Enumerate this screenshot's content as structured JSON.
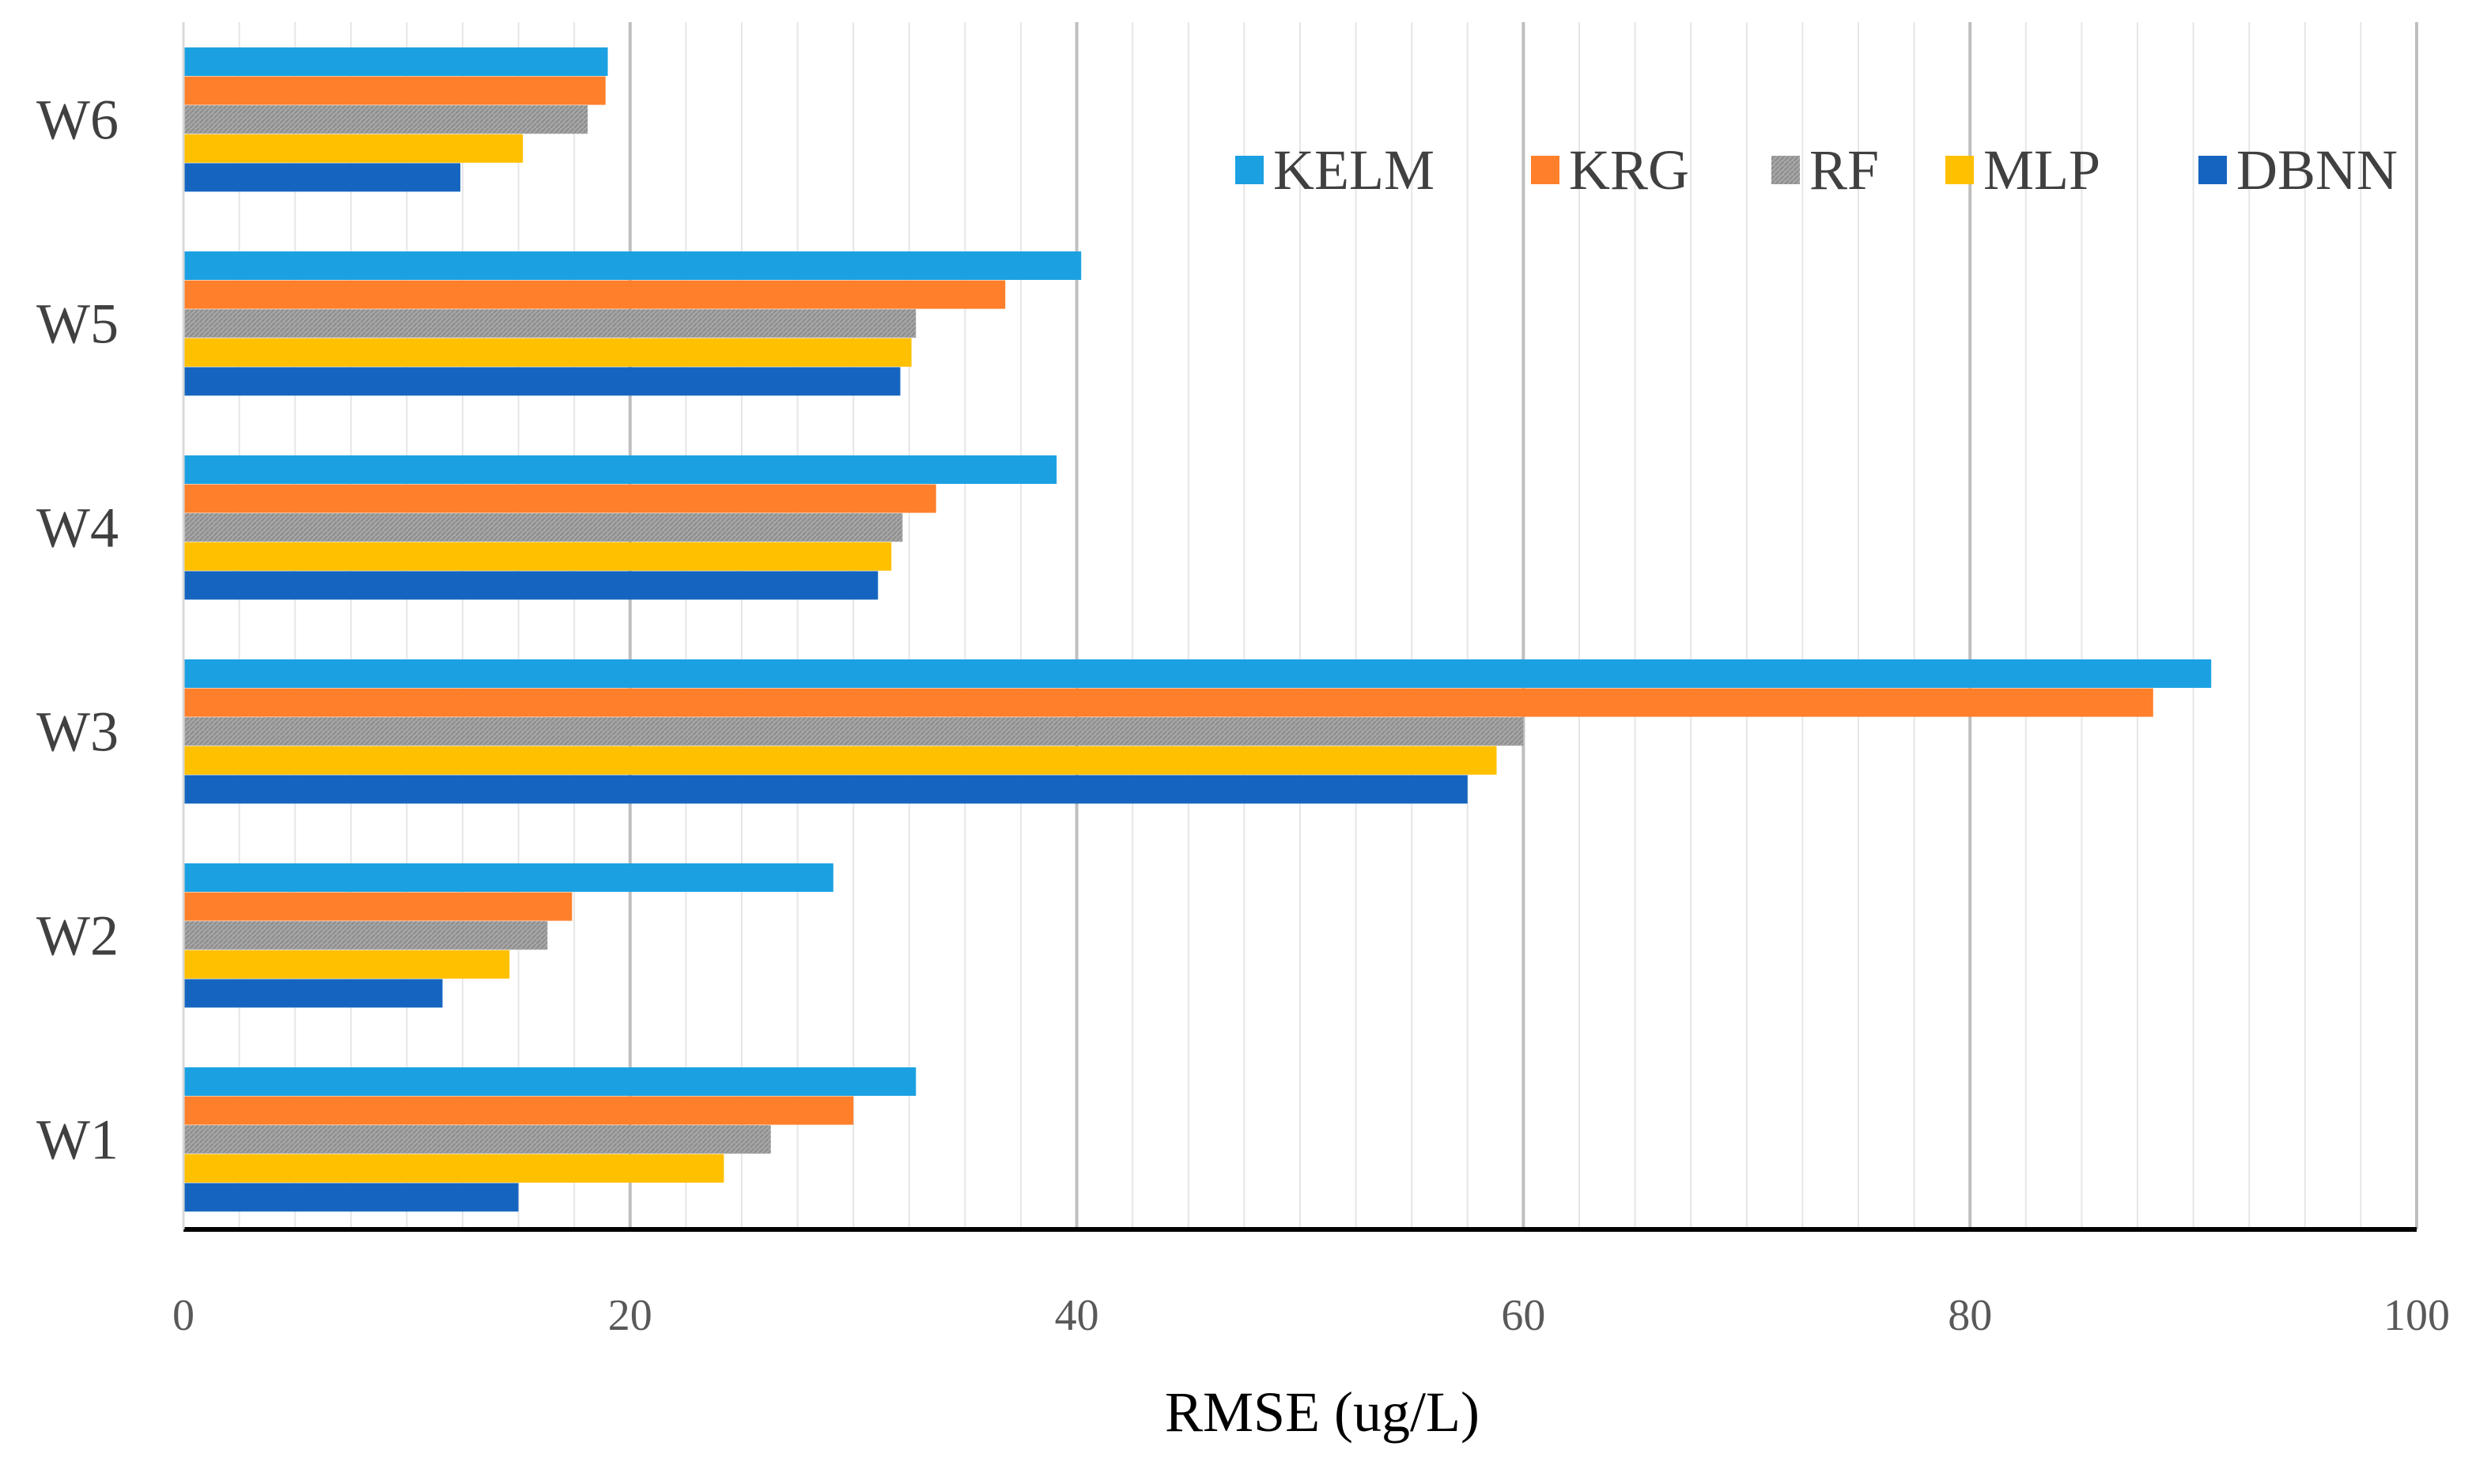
{
  "chart_data": {
    "type": "bar",
    "orientation": "horizontal",
    "title": "",
    "xlabel": "RMSE (ug/L)",
    "ylabel": "",
    "xlim": [
      0,
      100
    ],
    "xticks": [
      0,
      20,
      40,
      60,
      80,
      100
    ],
    "grid": "vertical major and minor gridlines",
    "legend_position": "top-right",
    "categories": [
      "W6",
      "W5",
      "W4",
      "W3",
      "W2",
      "W1"
    ],
    "series": [
      {
        "name": "KELM",
        "color": "#1BA1E2",
        "values": [
          19.0,
          40.2,
          39.1,
          90.8,
          29.1,
          32.8
        ]
      },
      {
        "name": "KRG",
        "color": "#FF7F2A",
        "values": [
          18.9,
          36.8,
          33.7,
          88.2,
          17.4,
          30.0
        ]
      },
      {
        "name": "RF",
        "color": "#A6A6A6",
        "values": [
          18.1,
          32.8,
          32.2,
          60.0,
          16.3,
          26.3
        ]
      },
      {
        "name": "MLP",
        "color": "#FFC000",
        "values": [
          15.2,
          32.6,
          31.7,
          58.8,
          14.6,
          24.2
        ]
      },
      {
        "name": "DBNN",
        "color": "#1565C0",
        "values": [
          12.4,
          32.1,
          31.1,
          57.5,
          11.6,
          15.0
        ]
      }
    ]
  }
}
